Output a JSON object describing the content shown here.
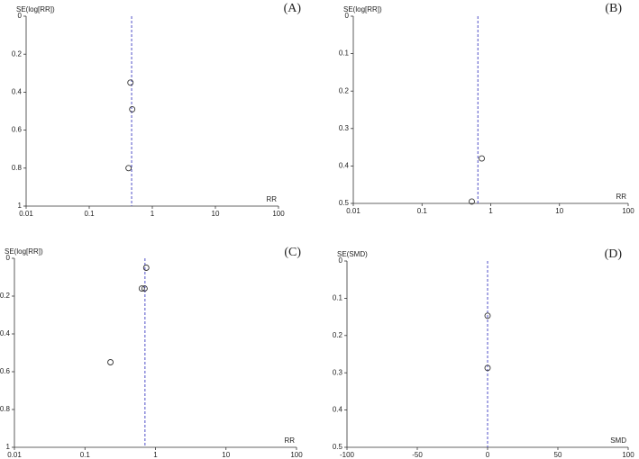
{
  "chart_data": [
    {
      "type": "scatter",
      "title": "(A)",
      "ylabel": "SE(log[RR])",
      "xlabel": "RR",
      "xscale": "log",
      "y_inverted": true,
      "xlim": [
        0.01,
        100
      ],
      "xticks": [
        0.01,
        0.1,
        1,
        10,
        100
      ],
      "ylim": [
        0,
        1
      ],
      "yticks": [
        0,
        0.2,
        0.4,
        0.6,
        0.8,
        1
      ],
      "summary_x": 0.47,
      "summary_color": "#5050c8",
      "color": "#333333",
      "x": [
        0.45,
        0.48,
        0.42
      ],
      "values": [
        0.35,
        0.49,
        0.8
      ]
    },
    {
      "type": "scatter",
      "title": "(B)",
      "ylabel": "SE(log[RR])",
      "xlabel": "RR",
      "xscale": "log",
      "y_inverted": true,
      "xlim": [
        0.01,
        100
      ],
      "xticks": [
        0.01,
        0.1,
        1,
        10,
        100
      ],
      "ylim": [
        0,
        0.5
      ],
      "yticks": [
        0,
        0.1,
        0.2,
        0.3,
        0.4,
        0.5
      ],
      "summary_x": 0.65,
      "summary_color": "#5050c8",
      "color": "#333333",
      "x": [
        0.74,
        0.53
      ],
      "values": [
        0.38,
        0.495
      ]
    },
    {
      "type": "scatter",
      "title": "(C)",
      "ylabel": "SE(log[RR])",
      "xlabel": "RR",
      "xscale": "log",
      "y_inverted": true,
      "xlim": [
        0.01,
        100
      ],
      "xticks": [
        0.01,
        0.1,
        1,
        10,
        100
      ],
      "ylim": [
        0,
        1
      ],
      "yticks": [
        0,
        0.2,
        0.4,
        0.6,
        0.8,
        1
      ],
      "summary_x": 0.71,
      "summary_color": "#5050c8",
      "color": "#333333",
      "x": [
        0.74,
        0.64,
        0.7,
        0.23
      ],
      "values": [
        0.05,
        0.16,
        0.16,
        0.55
      ]
    },
    {
      "type": "scatter",
      "title": "(D)",
      "ylabel": "SE(SMD)",
      "xlabel": "SMD",
      "xscale": "linear",
      "y_inverted": true,
      "xlim": [
        -100,
        100
      ],
      "xticks": [
        -100,
        -50,
        0,
        50,
        100
      ],
      "ylim": [
        0,
        0.5
      ],
      "yticks": [
        0,
        0.1,
        0.2,
        0.3,
        0.4,
        0.5
      ],
      "summary_x": 0,
      "summary_color": "#5050c8",
      "color": "#333333",
      "x": [
        0,
        0
      ],
      "values": [
        0.147,
        0.287
      ]
    }
  ]
}
